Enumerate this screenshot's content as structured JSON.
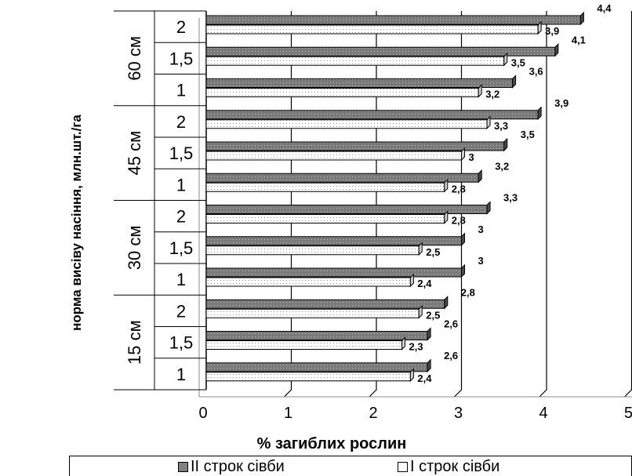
{
  "chart_data": {
    "type": "bar",
    "orientation": "horizontal",
    "xlabel": "% загиблих рослин",
    "ylabel": "норма висіву насіння, млн.шт./га",
    "xlim": [
      0,
      5
    ],
    "x_ticks": [
      "0",
      "1",
      "2",
      "3",
      "4",
      "5"
    ],
    "groups": [
      "15 см",
      "30 см",
      "45 см",
      "60 см"
    ],
    "rates": [
      "1",
      "1,5",
      "2"
    ],
    "categories": [
      "15 см / 1",
      "15 см / 1,5",
      "15 см / 2",
      "30 см / 1",
      "30 см / 1,5",
      "30 см / 2",
      "45 см / 1",
      "45 см / 1,5",
      "45 см / 2",
      "60 см / 1",
      "60 см / 1,5",
      "60 см / 2"
    ],
    "series": [
      {
        "name": "ІІ строк сівби",
        "color": "#808080",
        "values": [
          2.6,
          2.6,
          2.8,
          3,
          3,
          3.3,
          3.2,
          3.5,
          3.9,
          3.6,
          4.1,
          4.4
        ],
        "labels": [
          "2,6",
          "2,6",
          "2,8",
          "3",
          "3",
          "3,3",
          "3,2",
          "3,5",
          "3,9",
          "3,6",
          "4,1",
          "4,4"
        ]
      },
      {
        "name": "І строк сівби",
        "color": "#ffffff",
        "values": [
          2.4,
          2.3,
          2.5,
          2.4,
          2.5,
          2.8,
          2.8,
          3,
          3.3,
          3.2,
          3.5,
          3.9
        ],
        "labels": [
          "2,4",
          "2,3",
          "2,5",
          "2,4",
          "2,5",
          "2,8",
          "2,8",
          "3",
          "3,3",
          "3,2",
          "3,5",
          "3,9"
        ]
      }
    ],
    "gridlines": true,
    "legend_position": "bottom",
    "legend": [
      "ІІ строк сівби",
      "І строк сівби"
    ]
  }
}
